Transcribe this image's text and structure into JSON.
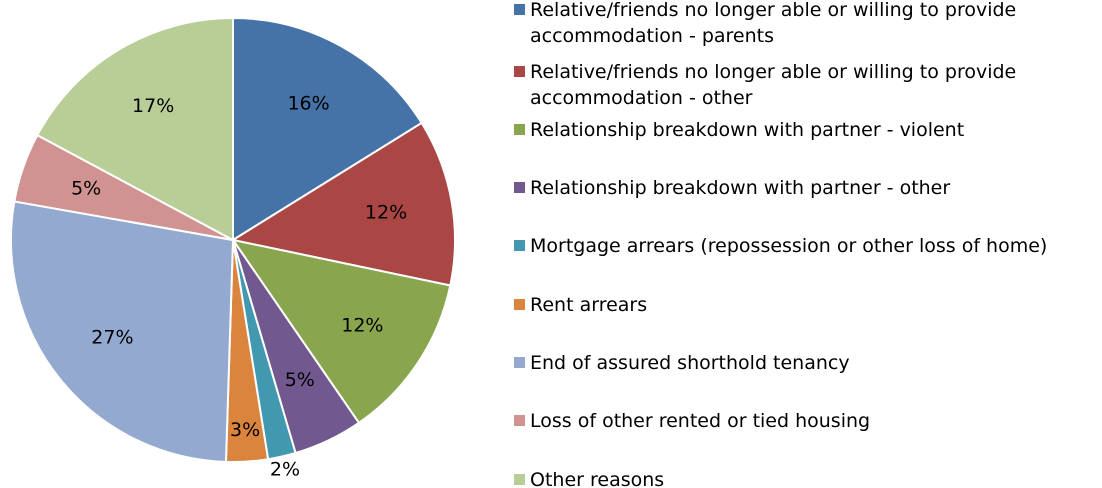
{
  "chart_data": {
    "type": "pie",
    "categories": [
      "Relative/friends no longer able or willing to provide accommodation - parents",
      "Relative/friends no longer able or willing to provide accommodation - other",
      "Relationship breakdown with partner - violent",
      "Relationship breakdown with partner - other",
      "Mortgage arrears (repossession or other loss of home)",
      "Rent arrears",
      "End of assured shorthold tenancy",
      "Loss of other rented or tied housing",
      "Other reasons"
    ],
    "values": [
      16,
      12,
      12,
      5,
      2,
      3,
      27,
      5,
      17
    ],
    "value_labels": [
      "16%",
      "12%",
      "12%",
      "5%",
      "2%",
      "3%",
      "27%",
      "5%",
      "17%"
    ],
    "colors": [
      "#4572a7",
      "#aa4643",
      "#89a54e",
      "#71588f",
      "#4198af",
      "#db843d",
      "#93a9cf",
      "#d19392",
      "#b9cd96"
    ],
    "legend": "right"
  }
}
